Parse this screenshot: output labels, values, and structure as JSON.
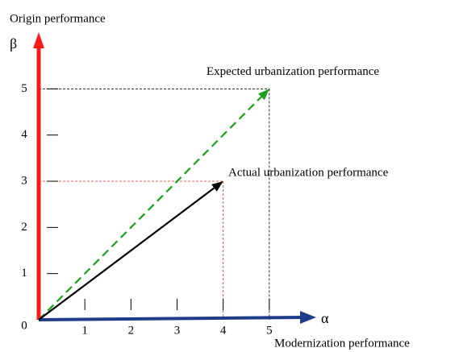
{
  "chart_data": {
    "type": "vector",
    "y_label": "Origin performance",
    "y_symbol": "β",
    "x_label": "Modernization performance",
    "x_symbol": "α",
    "origin": 0,
    "xlim": [
      0,
      6
    ],
    "ylim": [
      0,
      6
    ],
    "xticks": [
      1,
      2,
      3,
      4,
      5
    ],
    "yticks": [
      1,
      2,
      3,
      4,
      5
    ],
    "x_axis_color": "#1f3c88",
    "y_axis_color": "#ff1a1a",
    "series": [
      {
        "name": "Expected urbanization performance",
        "x": 5,
        "y": 5,
        "color": "#1aa01a",
        "dashed": true,
        "guide_color": "#000000"
      },
      {
        "name": "Actual urbanization performance",
        "x": 4,
        "y": 3,
        "color": "#000000",
        "dashed": false,
        "guide_color": "#e0302a"
      }
    ]
  }
}
